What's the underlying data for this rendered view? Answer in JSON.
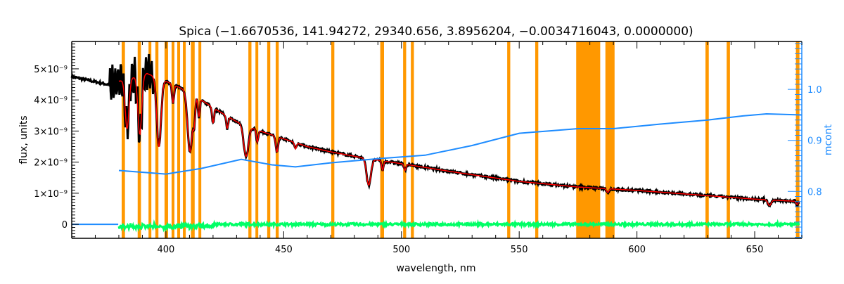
{
  "chart_data": {
    "type": "line",
    "title": "Spica   (−1.6670536, 141.94272, 29340.656, 3.8956204, −0.0034716043, 0.0000000)",
    "xlabel": "wavelength, nm",
    "ylabel": "flux, units",
    "y2label": "mcont",
    "xlim": [
      360,
      670
    ],
    "ylim": [
      -4.5e-10,
      5.88e-09
    ],
    "y2lim": [
      0.708,
      1.094
    ],
    "x_ticks": [
      400,
      450,
      500,
      550,
      600,
      650
    ],
    "x_tick_labels": [
      "400",
      "450",
      "500",
      "550",
      "600",
      "650"
    ],
    "y_ticks": [
      0,
      1e-09,
      2e-09,
      3e-09,
      4e-09,
      5e-09
    ],
    "y_tick_labels": [
      "0",
      "1×10⁻⁹",
      "2×10⁻⁹",
      "3×10⁻⁹",
      "4×10⁻⁹",
      "5×10⁻⁹"
    ],
    "y2_ticks": [
      0.8,
      0.9,
      1.0
    ],
    "y2_tick_labels": [
      "0.8",
      "0.9",
      "1.0"
    ],
    "colors": {
      "observed": "#000000",
      "model": "#ff0000",
      "mcont": "#1e8cff",
      "residual": "#00ff66",
      "masked_band": "#ff9800",
      "axis2": "#1e8cff"
    },
    "masked_bands_nm": [
      [
        381.2,
        382.6
      ],
      [
        388.0,
        389.4
      ],
      [
        392.6,
        393.8
      ],
      [
        395.5,
        396.8
      ],
      [
        399.4,
        400.9
      ],
      [
        402.4,
        403.6
      ],
      [
        404.8,
        406.0
      ],
      [
        407.2,
        408.4
      ],
      [
        410.6,
        412.2
      ],
      [
        413.8,
        415.0
      ],
      [
        435.0,
        436.3
      ],
      [
        438.0,
        439.2
      ],
      [
        443.0,
        444.3
      ],
      [
        446.6,
        447.9
      ],
      [
        470.2,
        471.5
      ],
      [
        491.0,
        492.6
      ],
      [
        500.7,
        502.0
      ],
      [
        504.0,
        505.3
      ],
      [
        544.9,
        546.2
      ],
      [
        556.8,
        558.1
      ],
      [
        574.2,
        584.4
      ],
      [
        586.6,
        590.5
      ],
      [
        629.1,
        630.5
      ],
      [
        638.1,
        639.5
      ],
      [
        667.5,
        669.0
      ]
    ],
    "continuum_flux": [
      [
        360,
        4.75e-09
      ],
      [
        375,
        4.5e-09
      ],
      [
        385,
        4.7e-09
      ],
      [
        392,
        4.85e-09
      ],
      [
        400,
        4.6e-09
      ],
      [
        410,
        4.25e-09
      ],
      [
        420,
        3.75e-09
      ],
      [
        430,
        3.3e-09
      ],
      [
        440,
        3e-09
      ],
      [
        450,
        2.75e-09
      ],
      [
        460,
        2.5e-09
      ],
      [
        470,
        2.33e-09
      ],
      [
        485,
        2.12e-09
      ],
      [
        500,
        1.95e-09
      ],
      [
        525,
        1.65e-09
      ],
      [
        550,
        1.38e-09
      ],
      [
        575,
        1.2e-09
      ],
      [
        600,
        1.09e-09
      ],
      [
        625,
        9.5e-10
      ],
      [
        650,
        8.1e-10
      ],
      [
        670,
        7.3e-10
      ]
    ],
    "absorption_lines": [
      [
        383.5,
        1.6e-09,
        0.8
      ],
      [
        388.9,
        1.9e-09,
        0.8
      ],
      [
        397.0,
        2.2e-09,
        0.9
      ],
      [
        403.0,
        6e-10,
        0.4
      ],
      [
        410.2,
        1.9e-09,
        1.0
      ],
      [
        412.0,
        7e-10,
        0.4
      ],
      [
        414.0,
        6e-10,
        0.4
      ],
      [
        420.0,
        5e-10,
        0.4
      ],
      [
        426.0,
        4e-10,
        0.4
      ],
      [
        434.0,
        1e-09,
        1.0
      ],
      [
        438.8,
        4e-10,
        0.4
      ],
      [
        447.1,
        5e-10,
        0.5
      ],
      [
        455.0,
        2e-10,
        0.4
      ],
      [
        486.1,
        8.5e-10,
        0.9
      ],
      [
        492.0,
        3e-10,
        0.4
      ],
      [
        501.5,
        2e-10,
        0.4
      ],
      [
        587.6,
        1.2e-10,
        0.5
      ],
      [
        656.3,
        1.8e-10,
        0.7
      ],
      [
        668.0,
        1e-10,
        0.4
      ]
    ],
    "mcont": [
      [
        380,
        0.841
      ],
      [
        400,
        0.834
      ],
      [
        415,
        0.845
      ],
      [
        432,
        0.863
      ],
      [
        445,
        0.852
      ],
      [
        455,
        0.848
      ],
      [
        470,
        0.856
      ],
      [
        490,
        0.864
      ],
      [
        510,
        0.871
      ],
      [
        530,
        0.89
      ],
      [
        550,
        0.914
      ],
      [
        575,
        0.923
      ],
      [
        590,
        0.923
      ],
      [
        610,
        0.932
      ],
      [
        630,
        0.94
      ],
      [
        645,
        0.948
      ],
      [
        655,
        0.952
      ],
      [
        670,
        0.95
      ]
    ],
    "model_range_nm": [
      380,
      670
    ],
    "residual_level": 0
  }
}
